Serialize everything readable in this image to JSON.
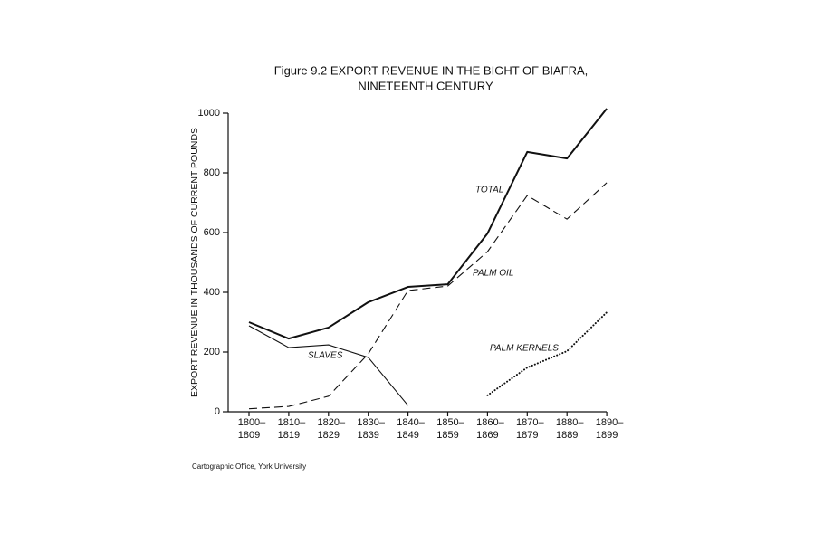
{
  "chart_data": {
    "type": "line",
    "title": [
      "Figure 9.2  EXPORT REVENUE IN THE BIGHT OF BIAFRA,",
      "NINETEENTH CENTURY"
    ],
    "y_label": "EXPORT REVENUE IN THOUSANDS OF CURRENT POUNDS",
    "source": "Cartographic Office, York University",
    "categories": [
      "1800–1809",
      "1810–1819",
      "1820–1829",
      "1830–1839",
      "1840–1849",
      "1850–1859",
      "1860–1869",
      "1870–1879",
      "1880–1889",
      "1890–1899"
    ],
    "ylim": [
      0,
      1000
    ],
    "yticks": [
      0,
      200,
      400,
      600,
      800,
      1000
    ],
    "series": [
      {
        "name": "TOTAL",
        "color": "#111111",
        "dash": "solid",
        "values": [
          300,
          245,
          282,
          367,
          418,
          427,
          597,
          870,
          848,
          1015
        ]
      },
      {
        "name": "PALM OIL",
        "color": "#111111",
        "dash": "dashed",
        "values": [
          10,
          18,
          52,
          194,
          406,
          421,
          536,
          724,
          645,
          767
        ]
      },
      {
        "name": "SLAVES",
        "color": "#111111",
        "dash": "thin",
        "values": [
          288,
          215,
          224,
          182,
          21,
          null,
          null,
          null,
          null,
          null
        ]
      },
      {
        "name": "PALM KERNELS",
        "color": "#111111",
        "dash": "dotted",
        "values": [
          null,
          null,
          null,
          null,
          null,
          null,
          55,
          148,
          203,
          333
        ]
      }
    ]
  }
}
